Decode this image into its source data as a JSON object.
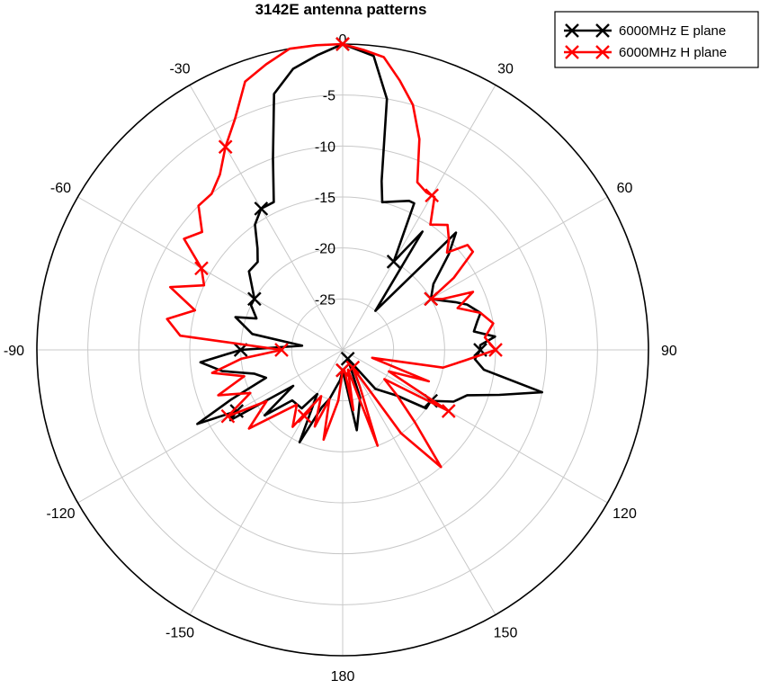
{
  "chart_data": {
    "type": "polar-line",
    "title": "3142E antenna patterns",
    "angle_unit": "deg",
    "zero_location": "top",
    "direction": "clockwise",
    "rlim": [
      -30,
      0
    ],
    "r_ticks": [
      -25,
      -20,
      -15,
      -10,
      -5,
      0
    ],
    "r_tick_labels": [
      "-25",
      "-20",
      "-15",
      "-10",
      "-5",
      "0"
    ],
    "angle_ticks": [
      0,
      30,
      60,
      90,
      120,
      150,
      180,
      -150,
      -120,
      -90,
      -60,
      -30
    ],
    "angle_tick_labels": [
      "0",
      "30",
      "60",
      "90",
      "120",
      "150",
      "180",
      "-150",
      "-120",
      "-90",
      "-60",
      "-30"
    ],
    "grid": true,
    "legend_position": "top-right",
    "series": [
      {
        "name": "6000MHz E plane",
        "color": "#000000",
        "marker": "x",
        "marker_angles": [
          -180,
          -120,
          -90,
          -60,
          -30,
          0,
          30,
          60,
          90,
          120,
          150
        ],
        "data": [
          [
            0,
            0
          ],
          [
            6,
            -1
          ],
          [
            10,
            -5
          ],
          [
            13,
            -13
          ],
          [
            15,
            -15
          ],
          [
            20,
            -14.5
          ],
          [
            24,
            -14
          ],
          [
            26,
            -14
          ],
          [
            30,
            -20
          ],
          [
            34,
            -16
          ],
          [
            40,
            -25
          ],
          [
            44,
            -14
          ],
          [
            48,
            -16
          ],
          [
            54,
            -19
          ],
          [
            60,
            -20
          ],
          [
            64,
            -19
          ],
          [
            67,
            -18
          ],
          [
            70,
            -17
          ],
          [
            75,
            -16
          ],
          [
            78,
            -16.5
          ],
          [
            82,
            -17
          ],
          [
            85,
            -15
          ],
          [
            88,
            -16.5
          ],
          [
            90,
            -16.5
          ],
          [
            94,
            -17
          ],
          [
            98,
            -16
          ],
          [
            102,
            -10
          ],
          [
            106,
            -14
          ],
          [
            110,
            -17
          ],
          [
            115,
            -18
          ],
          [
            120,
            -20
          ],
          [
            125,
            -20
          ],
          [
            130,
            -23
          ],
          [
            140,
            -25
          ],
          [
            150,
            -29
          ],
          [
            160,
            -25
          ],
          [
            170,
            -22
          ],
          [
            180,
            -28
          ],
          [
            185,
            -27
          ],
          [
            195,
            -25
          ],
          [
            200,
            -24
          ],
          [
            205,
            -20
          ],
          [
            210,
            -25
          ],
          [
            215,
            -23
          ],
          [
            225,
            -23
          ],
          [
            230,
            -20
          ],
          [
            234,
            -24
          ],
          [
            238,
            -17
          ],
          [
            240,
            -18
          ],
          [
            243,
            -14
          ],
          [
            246,
            -18
          ],
          [
            250,
            -22
          ],
          [
            255,
            -21
          ],
          [
            260,
            -18
          ],
          [
            265,
            -16
          ],
          [
            270,
            -20
          ],
          [
            276,
            -26
          ],
          [
            280,
            -21
          ],
          [
            287,
            -19
          ],
          [
            290,
            -21
          ],
          [
            296,
            -20
          ],
          [
            300,
            -20
          ],
          [
            310,
            -18
          ],
          [
            316,
            -18
          ],
          [
            320,
            -17
          ],
          [
            325,
            -15
          ],
          [
            330,
            -14
          ],
          [
            335,
            -14
          ],
          [
            340,
            -10
          ],
          [
            345,
            -4
          ],
          [
            350,
            -2
          ],
          [
            355,
            -1
          ],
          [
            360,
            0
          ]
        ]
      },
      {
        "name": "6000MHz H plane",
        "color": "#ff0000",
        "marker": "x",
        "marker_angles": [
          -180,
          -150,
          -120,
          -90,
          -60,
          -30,
          0,
          30,
          60,
          90,
          120,
          150
        ],
        "data": [
          [
            0,
            0
          ],
          [
            4,
            -0.5
          ],
          [
            8,
            -1
          ],
          [
            12,
            -3
          ],
          [
            16,
            -5
          ],
          [
            20,
            -8
          ],
          [
            24,
            -12
          ],
          [
            28,
            -12.5
          ],
          [
            31,
            -12.5
          ],
          [
            35,
            -15
          ],
          [
            40,
            -14
          ],
          [
            44,
            -15
          ],
          [
            47,
            -16
          ],
          [
            50,
            -14
          ],
          [
            53,
            -14
          ],
          [
            57,
            -17
          ],
          [
            60,
            -20
          ],
          [
            63,
            -19
          ],
          [
            66,
            -16
          ],
          [
            70,
            -18
          ],
          [
            75,
            -16
          ],
          [
            80,
            -15
          ],
          [
            85,
            -16
          ],
          [
            90,
            -15
          ],
          [
            95,
            -18
          ],
          [
            100,
            -20
          ],
          [
            105,
            -27
          ],
          [
            110,
            -21
          ],
          [
            115,
            -25
          ],
          [
            120,
            -18
          ],
          [
            125,
            -25
          ],
          [
            130,
            -23
          ],
          [
            135,
            -20
          ],
          [
            140,
            -15
          ],
          [
            145,
            -20
          ],
          [
            150,
            -28
          ],
          [
            155,
            -26
          ],
          [
            160,
            -20
          ],
          [
            165,
            -28
          ],
          [
            170,
            -24
          ],
          [
            175,
            -28
          ],
          [
            180,
            -28
          ],
          [
            185,
            -25
          ],
          [
            192,
            -21
          ],
          [
            195,
            -25
          ],
          [
            200,
            -22
          ],
          [
            205,
            -25
          ],
          [
            213,
            -21
          ],
          [
            220,
            -23
          ],
          [
            230,
            -18
          ],
          [
            236,
            -21
          ],
          [
            240,
            -17
          ],
          [
            245,
            -20
          ],
          [
            250,
            -17
          ],
          [
            255,
            -20
          ],
          [
            260,
            -17
          ],
          [
            265,
            -20
          ],
          [
            270,
            -24
          ],
          [
            275,
            -14
          ],
          [
            280,
            -12.5
          ],
          [
            285,
            -15
          ],
          [
            290,
            -12
          ],
          [
            295,
            -15
          ],
          [
            300,
            -14
          ],
          [
            305,
            -11
          ],
          [
            310,
            -12
          ],
          [
            315,
            -10
          ],
          [
            320,
            -10
          ],
          [
            325,
            -9
          ],
          [
            330,
            -7
          ],
          [
            335,
            -5
          ],
          [
            340,
            -2
          ],
          [
            345,
            -1
          ],
          [
            350,
            0
          ],
          [
            355,
            0
          ],
          [
            360,
            0
          ]
        ]
      }
    ]
  }
}
